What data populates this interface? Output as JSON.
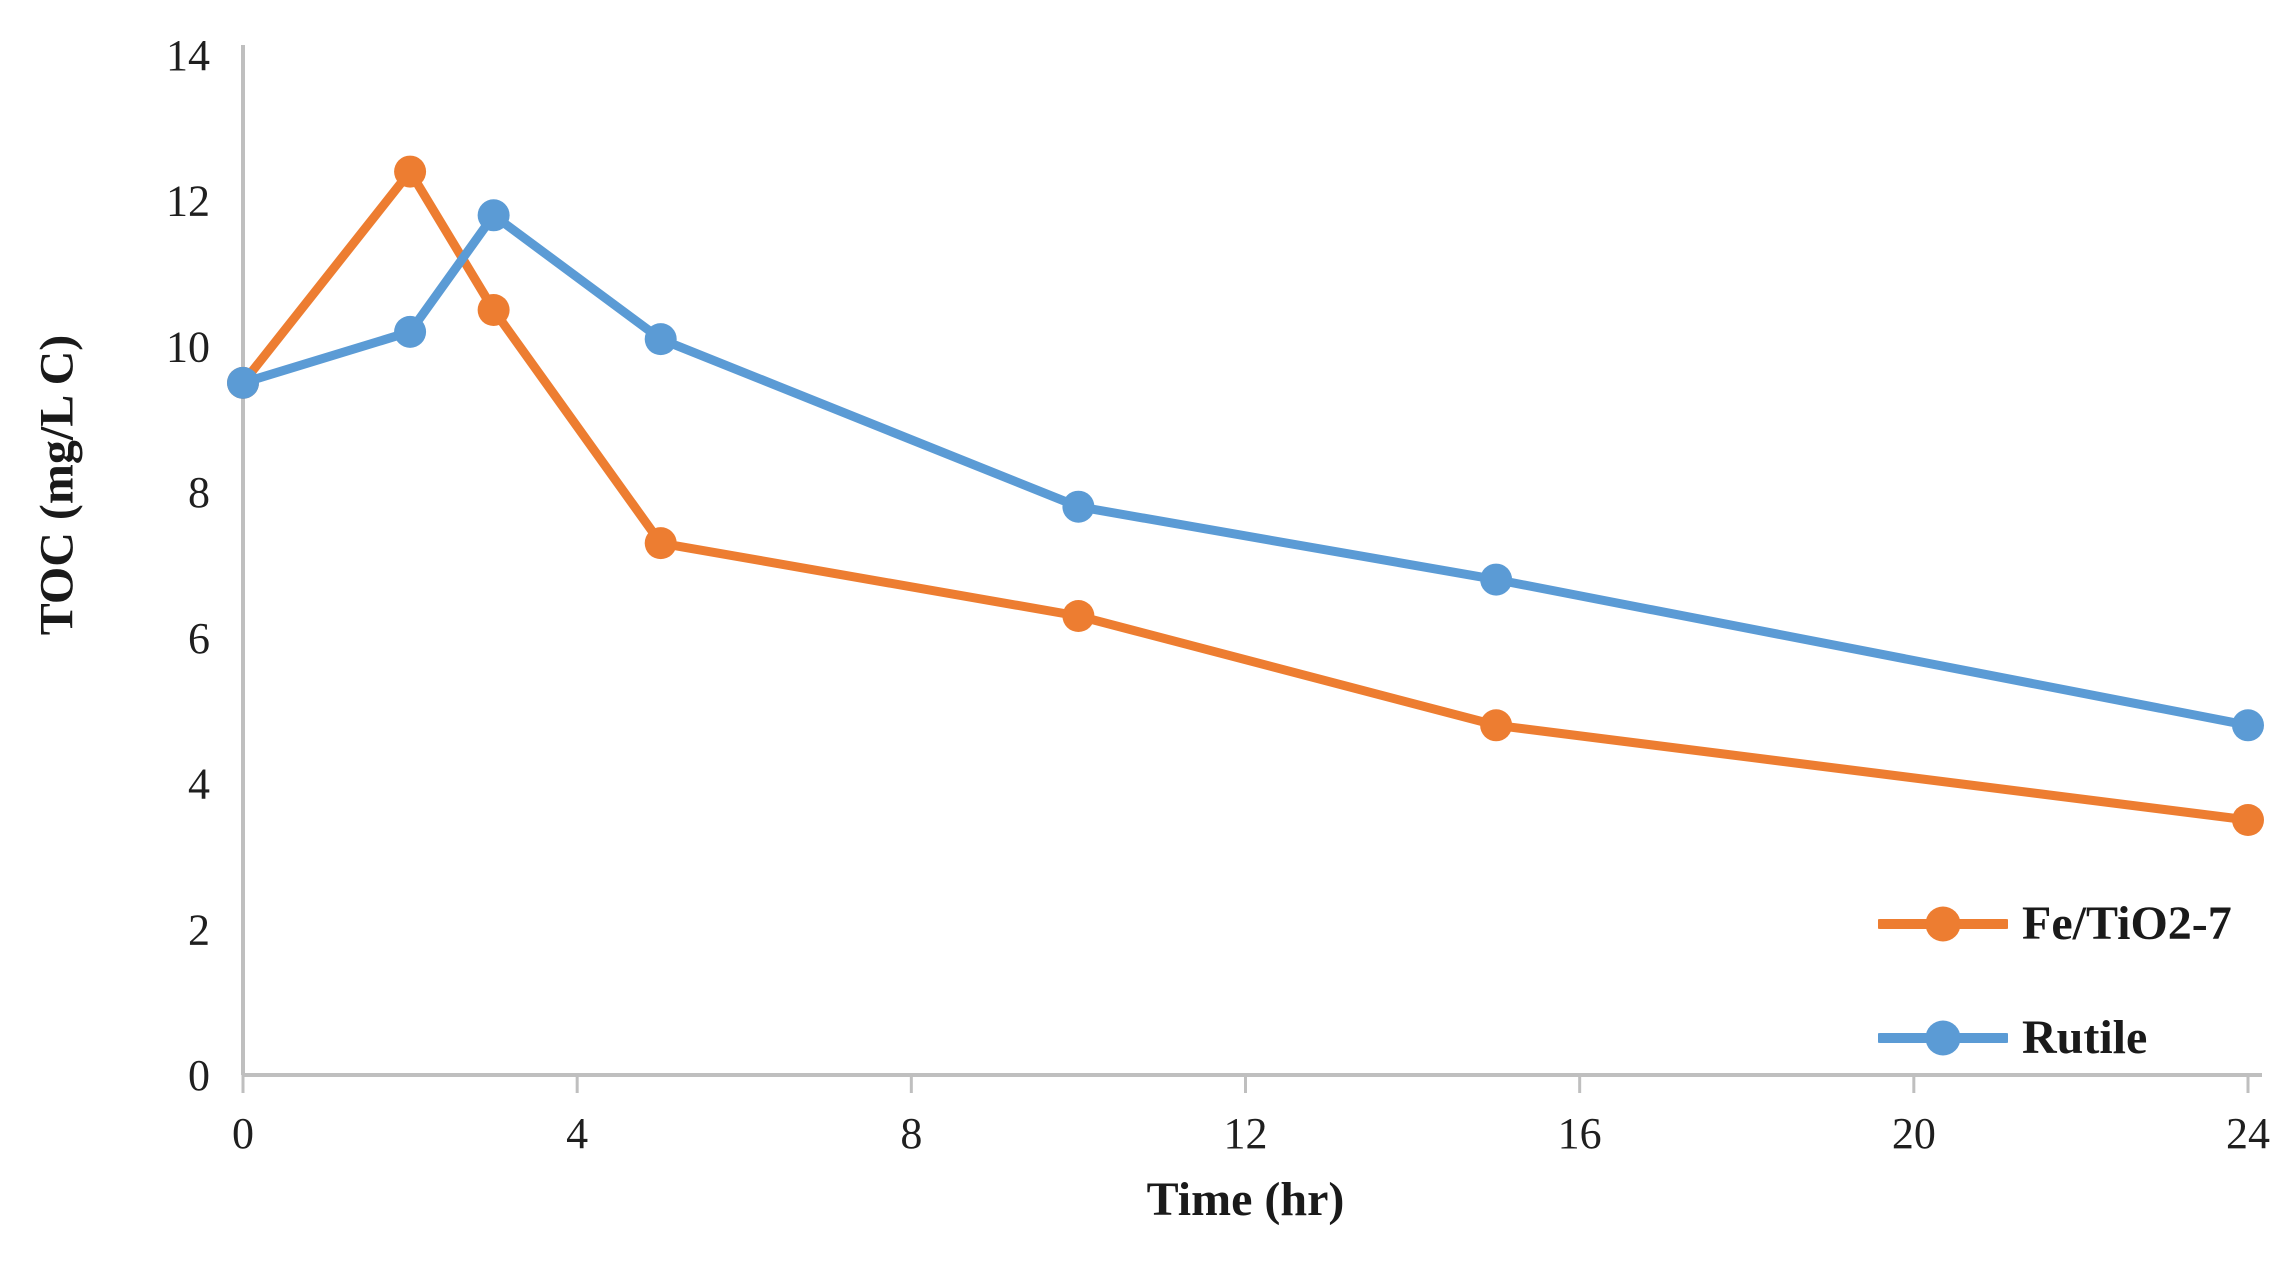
{
  "chart_data": {
    "type": "line",
    "title": "",
    "xlabel": "Time (hr)",
    "ylabel": "TOC (mg/L C)",
    "x": [
      0,
      2,
      3,
      5,
      10,
      15,
      24
    ],
    "series": [
      {
        "name": "Fe/TiO2-7",
        "color": "#ED7D31",
        "values": [
          9.5,
          12.4,
          10.5,
          7.3,
          6.3,
          4.8,
          3.5
        ]
      },
      {
        "name": "Rutile",
        "color": "#5B9BD5",
        "values": [
          9.5,
          10.2,
          11.8,
          10.1,
          7.8,
          6.8,
          4.8
        ]
      }
    ],
    "xlim": [
      0,
      24
    ],
    "ylim": [
      0,
      14
    ],
    "x_ticks": [
      0,
      4,
      8,
      12,
      16,
      20,
      24
    ],
    "y_ticks": [
      0,
      2,
      4,
      6,
      8,
      10,
      12,
      14
    ],
    "grid": false,
    "legend_position": "inside-bottom-right",
    "marker": "circle",
    "axis_color": "#BFBFBF",
    "text_color": "#1F1F1F"
  }
}
